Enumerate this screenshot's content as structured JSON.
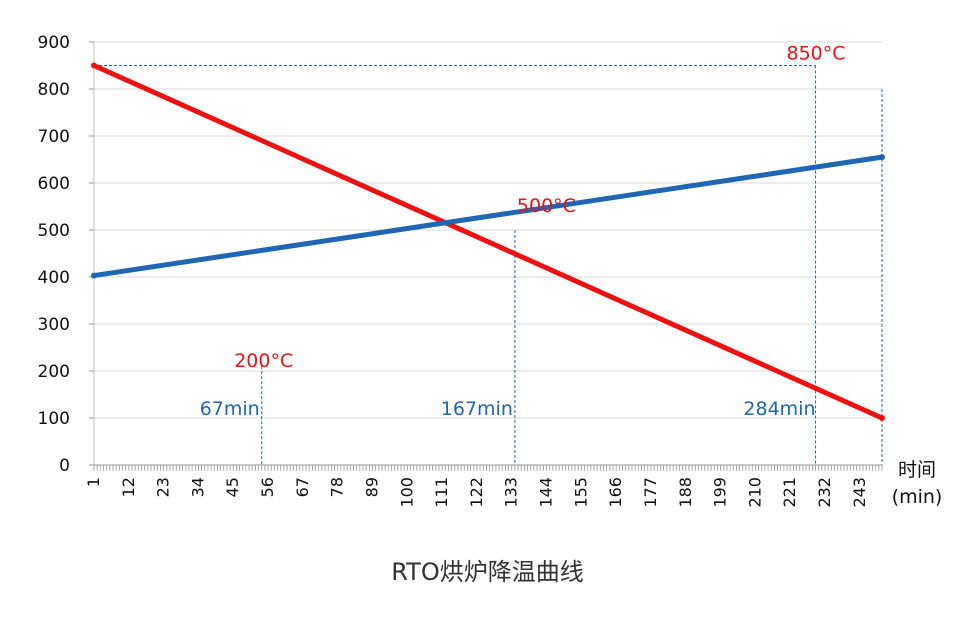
{
  "chart_data": {
    "type": "line",
    "title": "RTO烘炉降温曲线",
    "xlabel": [
      "时间",
      "(min)"
    ],
    "ylabel": "",
    "ylim": [
      0,
      900
    ],
    "yticks": [
      0,
      100,
      200,
      300,
      400,
      500,
      600,
      700,
      800,
      900
    ],
    "xlim": [
      1,
      250
    ],
    "xticks": [
      1,
      12,
      23,
      34,
      45,
      56,
      67,
      78,
      89,
      100,
      111,
      122,
      133,
      144,
      155,
      166,
      177,
      188,
      199,
      210,
      221,
      232,
      243
    ],
    "grid": true,
    "series": [
      {
        "x": [
          1,
          250
        ],
        "values": [
          850,
          100
        ],
        "color": "#ee1111"
      },
      {
        "x": [
          1,
          250
        ],
        "values": [
          403,
          655
        ],
        "color": "#1f66b5"
      }
    ],
    "guides": [
      {
        "x": 54,
        "top": 210,
        "color": "#1f66b5"
      },
      {
        "x": 134,
        "top": 500,
        "color": "#1f66b5"
      },
      {
        "x": 229,
        "top": 850,
        "color": "#1f66b5"
      },
      {
        "x": 250,
        "top": 800,
        "color": "#1f66b5"
      }
    ],
    "reference_line": {
      "y": 850,
      "x_from": 1,
      "x_to": 229,
      "color": "#1f66b5"
    },
    "annotations": [
      {
        "text": "850°C",
        "x": 229,
        "y": 850,
        "color": "#ee1111",
        "anchor": "end",
        "dx": 30,
        "dy": -6
      },
      {
        "text": "500°C",
        "x": 134,
        "y": 500,
        "color": "#ee1111",
        "anchor": "start",
        "dx": 2,
        "dy": -18
      },
      {
        "text": "200°C",
        "x": 54,
        "y": 200,
        "color": "#ee1111",
        "anchor": "middle",
        "dx": 2,
        "dy": -4
      },
      {
        "text": "67min",
        "x": 54,
        "y": 100,
        "color": "#1f66b5",
        "anchor": "end",
        "dx": -2,
        "dy": -3
      },
      {
        "text": "167min",
        "x": 134,
        "y": 100,
        "color": "#1f66b5",
        "anchor": "end",
        "dx": -2,
        "dy": -3
      },
      {
        "text": "284min",
        "x": 229,
        "y": 100,
        "color": "#1f66b5",
        "anchor": "end",
        "dx": 0,
        "dy": -3
      }
    ]
  }
}
